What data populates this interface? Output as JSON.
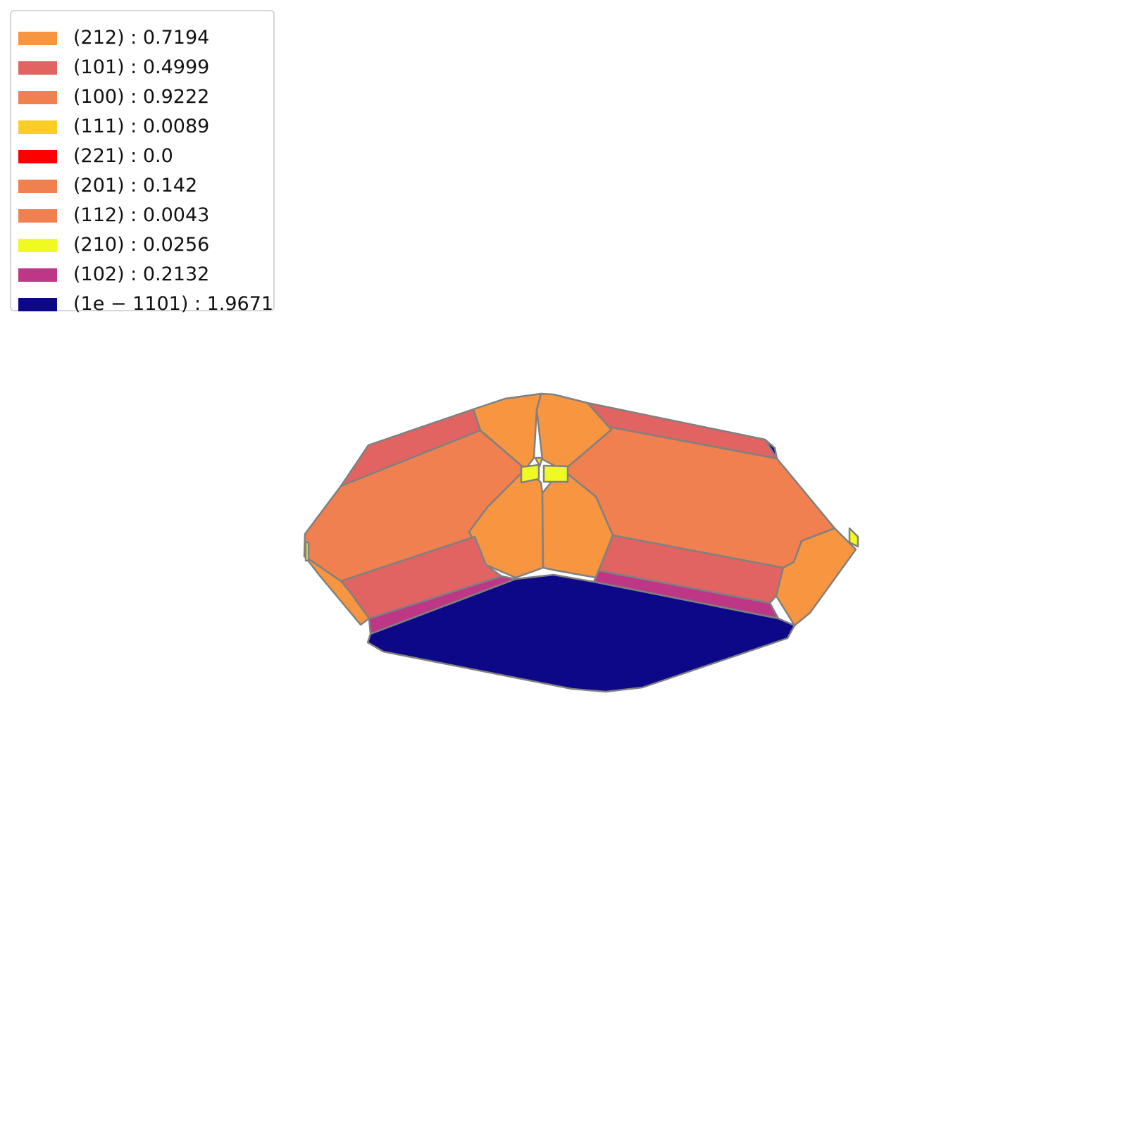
{
  "legend": [
    {
      "label": "(212) : 0.7194",
      "color": "#f79540"
    },
    {
      "label": "(101) : 0.4999",
      "color": "#e16462"
    },
    {
      "label": "(100) : 0.9222",
      "color": "#f0804f"
    },
    {
      "label": "(111) : 0.0089",
      "color": "#fccd25"
    },
    {
      "label": "(221) : 0.0",
      "color": "#ff0000"
    },
    {
      "label": "(201) : 0.142",
      "color": "#f0804f"
    },
    {
      "label": "(112) : 0.0043",
      "color": "#f0804f"
    },
    {
      "label": "(210) : 0.0256",
      "color": "#f0f921"
    },
    {
      "label": "(102) : 0.2132",
      "color": "#bd3786"
    },
    {
      "label": "(1e − 1101) : 1.9671",
      "color": "#0d0887"
    }
  ],
  "edge_color": "#808080"
}
